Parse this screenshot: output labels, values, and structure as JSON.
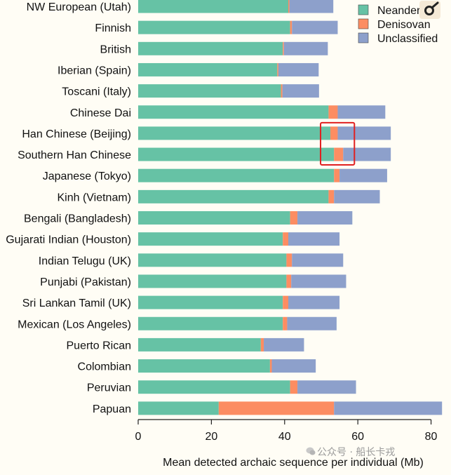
{
  "chart_data": {
    "type": "bar",
    "orientation": "horizontal",
    "stacked": true,
    "categories": [
      "NW European (Utah)",
      "Finnish",
      "British",
      "Iberian (Spain)",
      "Toscani (Italy)",
      "Chinese Dai",
      "Han Chinese (Beijing)",
      "Southern Han Chinese",
      "Japanese (Tokyo)",
      "Kinh (Vietnam)",
      "Bengali (Bangladesh)",
      "Gujarati Indian (Houston)",
      "Indian Telugu (UK)",
      "Punjabi (Pakistan)",
      "Sri Lankan Tamil (UK)",
      "Mexican (Los Angeles)",
      "Puerto Rican",
      "Colombian",
      "Peruvian",
      "Papuan"
    ],
    "series": [
      {
        "name": "Neanderthal",
        "color": "#66c2a5",
        "values": [
          41,
          41.5,
          39.5,
          38,
          39,
          52,
          52.5,
          53.5,
          53.5,
          52,
          41.5,
          39.5,
          40.5,
          40.5,
          39.5,
          39.5,
          33.5,
          36,
          41.5,
          22
        ]
      },
      {
        "name": "Denisovan",
        "color": "#fc8d62",
        "values": [
          0.3,
          0.5,
          0.3,
          0.3,
          0.4,
          2.5,
          2,
          2.5,
          1.5,
          1.5,
          2,
          1.5,
          1.5,
          1.3,
          1.5,
          1.2,
          0.8,
          0.5,
          2,
          31.5
        ]
      },
      {
        "name": "Unclassified",
        "color": "#8da0cb",
        "values": [
          12,
          12.5,
          12,
          11,
          10,
          13,
          14.5,
          13,
          13,
          12.5,
          15,
          14,
          14,
          15,
          14,
          13.5,
          11,
          12,
          16,
          29.5
        ]
      }
    ],
    "xlabel": "Mean detected archaic sequence per individual (Mb)",
    "ylabel": "",
    "title": "",
    "xlim": [
      0,
      82
    ],
    "xticks": [
      0,
      20,
      40,
      60,
      80
    ],
    "legend": {
      "position": "top-right",
      "labels": [
        "Neanderthal",
        "Denisovan",
        "Unclassified"
      ]
    },
    "grid": false,
    "annotation": {
      "type": "red-box",
      "color": "#e02020",
      "highlights": [
        "Han Chinese (Beijing)",
        "Southern Han Chinese"
      ],
      "series": "Denisovan"
    }
  },
  "watermark": {
    "text": "公众号 · 船长卡戎"
  }
}
